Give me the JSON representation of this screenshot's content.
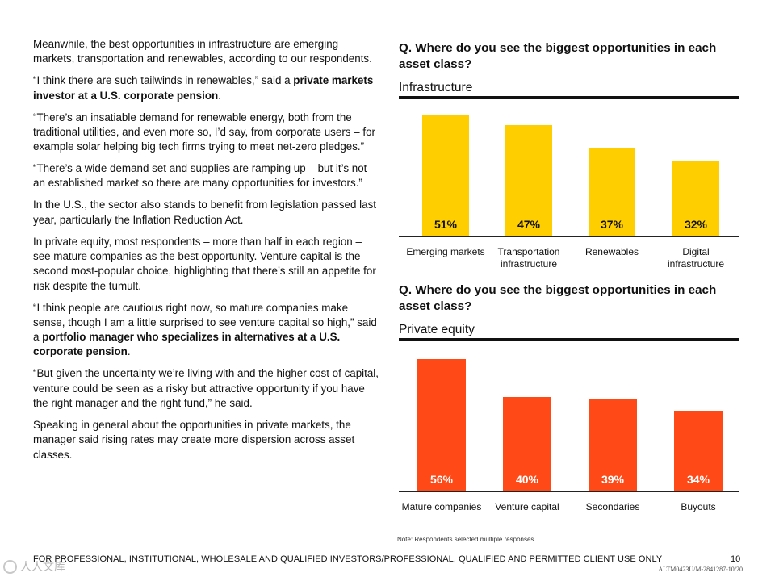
{
  "paragraphs": [
    {
      "runs": [
        {
          "text": "Meanwhile, the best opportunities in infrastructure are emerging markets, transportation and renewables, according to our respondents.",
          "bold": false
        }
      ]
    },
    {
      "runs": [
        {
          "text": "“I think there are such tailwinds in renewables,” said a ",
          "bold": false
        },
        {
          "text": "private markets investor at a U.S. corporate pension",
          "bold": true
        },
        {
          "text": ".",
          "bold": false
        }
      ]
    },
    {
      "runs": [
        {
          "text": "“There’s an insatiable demand for renewable energy, both from the traditional utilities, and even more so, I’d say, from corporate users – for example solar helping big tech firms trying to meet net-zero pledges.”",
          "bold": false
        }
      ]
    },
    {
      "runs": [
        {
          "text": "“There’s a wide demand set and supplies are ramping up – but it’s not an established market so there are many opportunities for investors.”",
          "bold": false
        }
      ]
    },
    {
      "runs": [
        {
          "text": "In the U.S., the sector also stands to benefit from legislation passed last year, particularly the Inflation Reduction Act.",
          "bold": false
        }
      ]
    },
    {
      "runs": [
        {
          "text": "In private equity, most respondents – more than half in each region – see mature companies as the best opportunity. Venture capital is the second most-popular choice, highlighting that there’s still an appetite for risk despite the tumult.",
          "bold": false
        }
      ]
    },
    {
      "runs": [
        {
          "text": "“I think people are cautious right now, so mature companies make sense, though I am a little surprised to see venture capital so high,” said a ",
          "bold": false
        },
        {
          "text": "portfolio manager who specializes in alternatives at a U.S. corporate pension",
          "bold": true
        },
        {
          "text": ".",
          "bold": false
        }
      ]
    },
    {
      "runs": [
        {
          "text": "“But given the uncertainty we’re living with and the higher cost of capital, venture could be seen as a risky but attractive opportunity if you have the right manager and the right fund,” he said.",
          "bold": false
        }
      ]
    },
    {
      "runs": [
        {
          "text": "Speaking in general about the opportunities in private markets, the manager said rising rates may create more dispersion across asset classes.",
          "bold": false
        }
      ]
    }
  ],
  "chart_data": [
    {
      "type": "bar",
      "title": "Q. Where do you see the biggest opportunities in each asset class?",
      "subtitle": "Infrastructure",
      "categories": [
        "Emerging markets",
        "Transportation infrastructure",
        "Renewables",
        "Digital infrastructure"
      ],
      "values": [
        51,
        47,
        37,
        32
      ],
      "value_labels": [
        "51%",
        "47%",
        "37%",
        "32%"
      ],
      "unit": "%",
      "ylim": [
        0,
        51
      ],
      "color": "#FFCE00",
      "label_color": "#111111",
      "grid": false,
      "legend": "none"
    },
    {
      "type": "bar",
      "title": "Q. Where do you see the biggest opportunities in each asset class?",
      "subtitle": "Private equity",
      "categories": [
        "Mature companies",
        "Venture capital",
        "Secondaries",
        "Buyouts"
      ],
      "values": [
        56,
        40,
        39,
        34
      ],
      "value_labels": [
        "56%",
        "40%",
        "39%",
        "34%"
      ],
      "unit": "%",
      "ylim": [
        0,
        56
      ],
      "color": "#FF4A17",
      "label_color": "#ffffff",
      "grid": false,
      "legend": "none"
    }
  ],
  "note": "Note: Respondents selected multiple responses.",
  "footer": {
    "text": "FOR PROFESSIONAL, INSTITUTIONAL, WHOLESALE AND QUALIFIED INVESTORS/PROFESSIONAL, QUALIFIED AND PERMITTED CLIENT USE ONLY",
    "page_number": "10",
    "code": "ALTM0423U/M-2841287-10/20"
  },
  "watermark": "人人文库"
}
